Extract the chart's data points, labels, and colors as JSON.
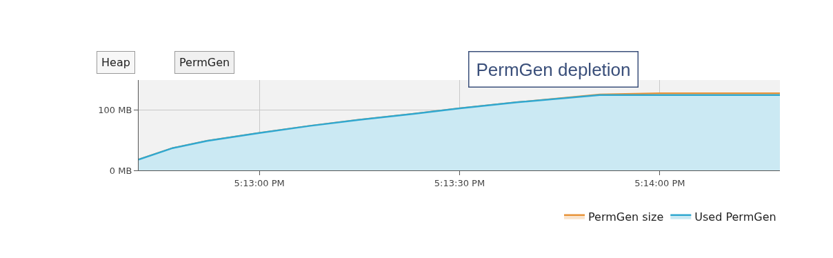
{
  "chart_data": {
    "type": "area",
    "title": "PermGen depletion",
    "annotations": [
      "Heap",
      "PermGen"
    ],
    "x": [
      17.211639,
      17.213056,
      17.214486,
      17.216667,
      17.218789,
      17.2208,
      17.223094,
      17.225017,
      17.227389,
      17.230833,
      17.233333,
      17.238333
    ],
    "series": [
      {
        "name": "PermGen size",
        "color": "#e8943a",
        "values": [
          18,
          37,
          49,
          62,
          74,
          84,
          94,
          103,
          113,
          126,
          128,
          128
        ]
      },
      {
        "name": "Used PermGen",
        "color": "#30a8d0",
        "values": [
          18,
          37,
          49,
          62,
          74,
          84,
          94,
          103,
          113,
          125,
          125,
          125
        ]
      }
    ],
    "xlim": [
      17.211639,
      17.238333
    ],
    "xticks": [
      {
        "value": 17.216667,
        "label": "5:13:00 PM"
      },
      {
        "value": 17.225,
        "label": "5:13:30 PM"
      },
      {
        "value": 17.233333,
        "label": "5:14:00 PM"
      }
    ],
    "ylim": [
      0,
      150
    ],
    "yticks": [
      {
        "value": 0,
        "label": "0 MB"
      },
      {
        "value": 100,
        "label": "100 MB"
      }
    ],
    "grid": true,
    "legend": "bottom right",
    "marker": "none",
    "line_style": "solid"
  }
}
